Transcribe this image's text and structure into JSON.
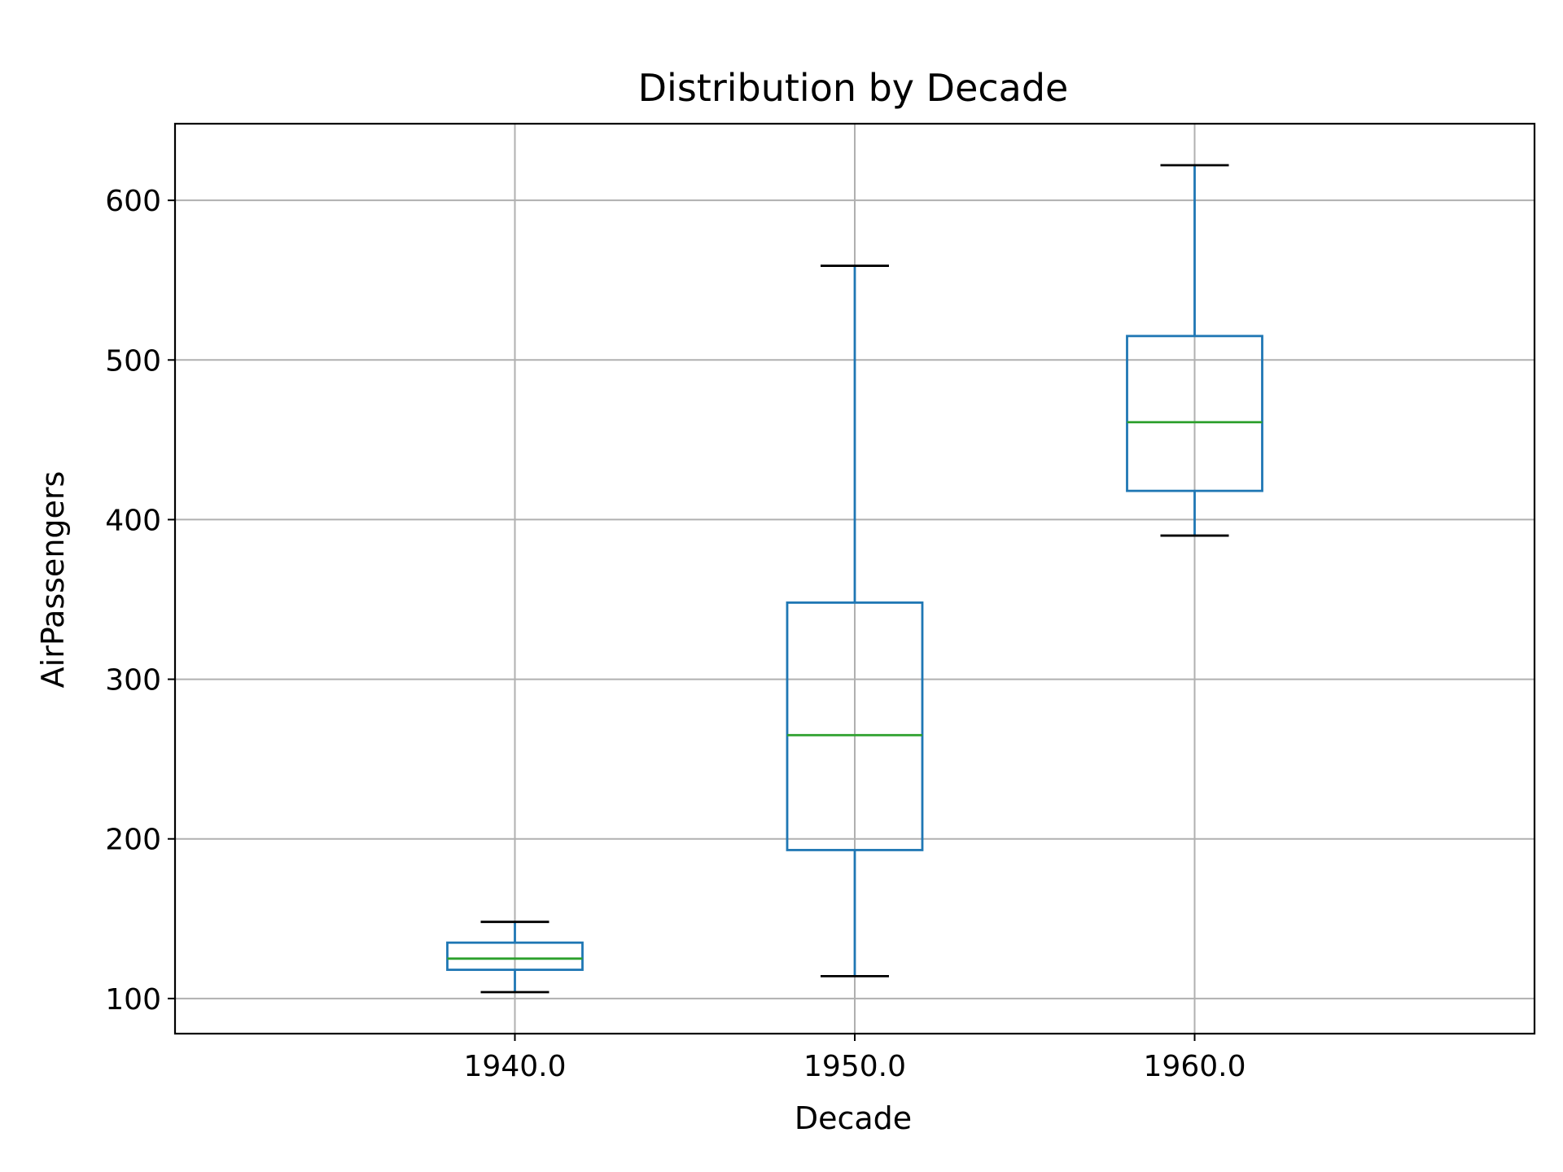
{
  "chart_data": {
    "type": "box",
    "title": "Distribution by Decade",
    "xlabel": "Decade",
    "ylabel": "AirPassengers",
    "categories": [
      "1940.0",
      "1950.0",
      "1960.0"
    ],
    "boxes": [
      {
        "category": "1940.0",
        "whisker_low": 104,
        "q1": 118,
        "median": 125,
        "q3": 135,
        "whisker_high": 148
      },
      {
        "category": "1950.0",
        "whisker_low": 114,
        "q1": 193,
        "median": 265,
        "q3": 348,
        "whisker_high": 559
      },
      {
        "category": "1960.0",
        "whisker_low": 390,
        "q1": 418,
        "median": 461,
        "q3": 515,
        "whisker_high": 622
      }
    ],
    "ylim": [
      78,
      648
    ],
    "yticks": [
      100,
      200,
      300,
      400,
      500,
      600
    ],
    "grid": true,
    "colors": {
      "box": "#1f77b4",
      "median": "#2ca02c",
      "caps": "#000000",
      "grid": "#b0b0b0",
      "frame": "#000000"
    }
  }
}
